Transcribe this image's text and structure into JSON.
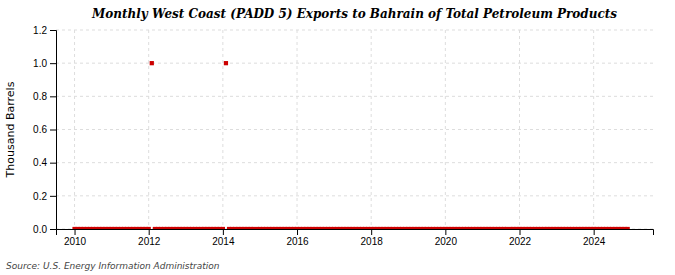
{
  "chart_data": {
    "type": "scatter",
    "title": "Monthly West Coast (PADD 5) Exports to Bahrain of Total Petroleum Products",
    "ylabel": "Thousand Barrels",
    "annotation": "Source: U.S. Energy Information Administration",
    "color": "#cc0000",
    "marker": "square",
    "grid": true,
    "xlim": [
      2009.5,
      2025.6
    ],
    "xticks": [
      2010,
      2012,
      2014,
      2016,
      2018,
      2020,
      2022,
      2024
    ],
    "ylim": [
      0.0,
      1.2
    ],
    "yticks": [
      {
        "value": 0.0,
        "label": "0.0"
      },
      0.2,
      0.4,
      0.6,
      0.8,
      {
        "value": 1.0,
        "label": "1.0"
      },
      1.2
    ],
    "x": [
      2010.0,
      2010.083,
      2010.167,
      2010.25,
      2010.333,
      2010.417,
      2010.5,
      2010.583,
      2010.667,
      2010.75,
      2010.833,
      2010.917,
      2011.0,
      2011.083,
      2011.167,
      2011.25,
      2011.333,
      2011.417,
      2011.5,
      2011.583,
      2011.667,
      2011.75,
      2011.833,
      2011.917,
      2012.0,
      2012.083,
      2012.167,
      2012.25,
      2012.333,
      2012.417,
      2012.5,
      2012.583,
      2012.667,
      2012.75,
      2012.833,
      2012.917,
      2013.0,
      2013.083,
      2013.167,
      2013.25,
      2013.333,
      2013.417,
      2013.5,
      2013.583,
      2013.667,
      2013.75,
      2013.833,
      2013.917,
      2014.0,
      2014.083,
      2014.167,
      2014.25,
      2014.333,
      2014.417,
      2014.5,
      2014.583,
      2014.667,
      2014.75,
      2014.833,
      2014.917,
      2015.0,
      2015.083,
      2015.167,
      2015.25,
      2015.333,
      2015.417,
      2015.5,
      2015.583,
      2015.667,
      2015.75,
      2015.833,
      2015.917,
      2016.0,
      2016.083,
      2016.167,
      2016.25,
      2016.333,
      2016.417,
      2016.5,
      2016.583,
      2016.667,
      2016.75,
      2016.833,
      2016.917,
      2017.0,
      2017.083,
      2017.167,
      2017.25,
      2017.333,
      2017.417,
      2017.5,
      2017.583,
      2017.667,
      2017.75,
      2017.833,
      2017.917,
      2018.0,
      2018.083,
      2018.167,
      2018.25,
      2018.333,
      2018.417,
      2018.5,
      2018.583,
      2018.667,
      2018.75,
      2018.833,
      2018.917,
      2019.0,
      2019.083,
      2019.167,
      2019.25,
      2019.333,
      2019.417,
      2019.5,
      2019.583,
      2019.667,
      2019.75,
      2019.833,
      2019.917,
      2020.0,
      2020.083,
      2020.167,
      2020.25,
      2020.333,
      2020.417,
      2020.5,
      2020.583,
      2020.667,
      2020.75,
      2020.833,
      2020.917,
      2021.0,
      2021.083,
      2021.167,
      2021.25,
      2021.333,
      2021.417,
      2021.5,
      2021.583,
      2021.667,
      2021.75,
      2021.833,
      2021.917,
      2022.0,
      2022.083,
      2022.167,
      2022.25,
      2022.333,
      2022.417,
      2022.5,
      2022.583,
      2022.667,
      2022.75,
      2022.833,
      2022.917,
      2023.0,
      2023.083,
      2023.167,
      2023.25,
      2023.333,
      2023.417,
      2023.5,
      2023.583,
      2023.667,
      2023.75,
      2023.833,
      2023.917,
      2024.0,
      2024.083,
      2024.167,
      2024.25,
      2024.333,
      2024.417,
      2024.5,
      2024.583,
      2024.667,
      2024.75,
      2024.833,
      2024.917
    ],
    "values": [
      0,
      0,
      0,
      0,
      0,
      0,
      0,
      0,
      0,
      0,
      0,
      0,
      0,
      0,
      0,
      0,
      0,
      0,
      0,
      0,
      0,
      0,
      0,
      0,
      0,
      1.0,
      0,
      0,
      0,
      0,
      0,
      0,
      0,
      0,
      0,
      0,
      0,
      0,
      0,
      0,
      0,
      0,
      0,
      0,
      0,
      0,
      0,
      0,
      0,
      1.0,
      0,
      0,
      0,
      0,
      0,
      0,
      0,
      0,
      0,
      0,
      0,
      0,
      0,
      0,
      0,
      0,
      0,
      0,
      0,
      0,
      0,
      0,
      0,
      0,
      0,
      0,
      0,
      0,
      0,
      0,
      0,
      0,
      0,
      0,
      0,
      0,
      0,
      0,
      0,
      0,
      0,
      0,
      0,
      0,
      0,
      0,
      0,
      0,
      0,
      0,
      0,
      0,
      0,
      0,
      0,
      0,
      0,
      0,
      0,
      0,
      0,
      0,
      0,
      0,
      0,
      0,
      0,
      0,
      0,
      0,
      0,
      0,
      0,
      0,
      0,
      0,
      0,
      0,
      0,
      0,
      0,
      0,
      0,
      0,
      0,
      0,
      0,
      0,
      0,
      0,
      0,
      0,
      0,
      0,
      0,
      0,
      0,
      0,
      0,
      0,
      0,
      0,
      0,
      0,
      0,
      0,
      0,
      0,
      0,
      0,
      0,
      0,
      0,
      0,
      0,
      0,
      0,
      0,
      0,
      0,
      0,
      0,
      0,
      0,
      0,
      0,
      0,
      0,
      0,
      0
    ]
  }
}
